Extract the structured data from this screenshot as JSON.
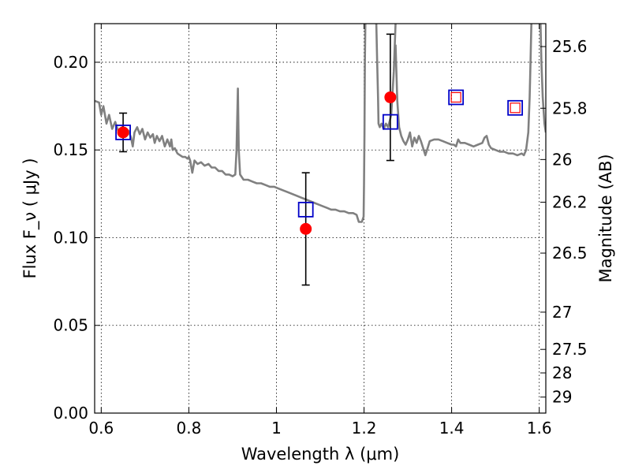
{
  "chart_data": {
    "type": "scatter",
    "xlabel": "Wavelength  λ (μm)",
    "ylabel": "Flux  F_ν ( μJy )",
    "ylabel_right": "Magnitude (AB)",
    "xlim": [
      0.585,
      1.615
    ],
    "ylim": [
      0.0,
      0.222
    ],
    "grid": true,
    "xticks": [
      {
        "value": 0.6,
        "label": "0.6"
      },
      {
        "value": 0.8,
        "label": "0.8"
      },
      {
        "value": 1.0,
        "label": "1"
      },
      {
        "value": 1.2,
        "label": "1.2"
      },
      {
        "value": 1.4,
        "label": "1.4"
      },
      {
        "value": 1.6,
        "label": "1.6"
      }
    ],
    "yticks": [
      {
        "value": 0.0,
        "label": "0.00"
      },
      {
        "value": 0.05,
        "label": "0.05"
      },
      {
        "value": 0.1,
        "label": "0.10"
      },
      {
        "value": 0.15,
        "label": "0.15"
      },
      {
        "value": 0.2,
        "label": "0.20"
      }
    ],
    "mag_ticks": [
      {
        "value": 25.6,
        "label": "25.6"
      },
      {
        "value": 25.8,
        "label": "25.8"
      },
      {
        "value": 26.0,
        "label": "26"
      },
      {
        "value": 26.2,
        "label": "26.2"
      },
      {
        "value": 26.5,
        "label": "26.5"
      },
      {
        "value": 27.0,
        "label": "27"
      },
      {
        "value": 27.5,
        "label": "27.5"
      },
      {
        "value": 28.0,
        "label": "28"
      },
      {
        "value": 29.0,
        "label": "29"
      }
    ],
    "series": [
      {
        "kind": "line",
        "color": "#808080",
        "points": [
          [
            0.585,
            0.178
          ],
          [
            0.595,
            0.177
          ],
          [
            0.6,
            0.17
          ],
          [
            0.605,
            0.175
          ],
          [
            0.612,
            0.165
          ],
          [
            0.618,
            0.17
          ],
          [
            0.625,
            0.162
          ],
          [
            0.632,
            0.166
          ],
          [
            0.64,
            0.16
          ],
          [
            0.648,
            0.163
          ],
          [
            0.655,
            0.158
          ],
          [
            0.662,
            0.161
          ],
          [
            0.668,
            0.157
          ],
          [
            0.672,
            0.152
          ],
          [
            0.676,
            0.16
          ],
          [
            0.682,
            0.163
          ],
          [
            0.688,
            0.159
          ],
          [
            0.694,
            0.162
          ],
          [
            0.7,
            0.156
          ],
          [
            0.706,
            0.16
          ],
          [
            0.712,
            0.157
          ],
          [
            0.718,
            0.159
          ],
          [
            0.722,
            0.154
          ],
          [
            0.727,
            0.158
          ],
          [
            0.733,
            0.155
          ],
          [
            0.739,
            0.158
          ],
          [
            0.745,
            0.152
          ],
          [
            0.751,
            0.156
          ],
          [
            0.757,
            0.152
          ],
          [
            0.76,
            0.156
          ],
          [
            0.763,
            0.15
          ],
          [
            0.768,
            0.151
          ],
          [
            0.774,
            0.148
          ],
          [
            0.78,
            0.147
          ],
          [
            0.786,
            0.146
          ],
          [
            0.792,
            0.146
          ],
          [
            0.797,
            0.145
          ],
          [
            0.8,
            0.146
          ],
          [
            0.803,
            0.144
          ],
          [
            0.808,
            0.137
          ],
          [
            0.813,
            0.144
          ],
          [
            0.82,
            0.142
          ],
          [
            0.828,
            0.143
          ],
          [
            0.836,
            0.141
          ],
          [
            0.845,
            0.142
          ],
          [
            0.852,
            0.14
          ],
          [
            0.86,
            0.14
          ],
          [
            0.868,
            0.138
          ],
          [
            0.876,
            0.138
          ],
          [
            0.884,
            0.136
          ],
          [
            0.892,
            0.136
          ],
          [
            0.9,
            0.135
          ],
          [
            0.906,
            0.136
          ],
          [
            0.909,
            0.15
          ],
          [
            0.912,
            0.185
          ],
          [
            0.914,
            0.15
          ],
          [
            0.917,
            0.136
          ],
          [
            0.925,
            0.133
          ],
          [
            0.935,
            0.133
          ],
          [
            0.945,
            0.132
          ],
          [
            0.955,
            0.131
          ],
          [
            0.965,
            0.131
          ],
          [
            0.975,
            0.13
          ],
          [
            0.985,
            0.129
          ],
          [
            0.995,
            0.129
          ],
          [
            1.005,
            0.128
          ],
          [
            1.015,
            0.127
          ],
          [
            1.025,
            0.126
          ],
          [
            1.035,
            0.125
          ],
          [
            1.045,
            0.124
          ],
          [
            1.055,
            0.123
          ],
          [
            1.065,
            0.122
          ],
          [
            1.075,
            0.121
          ],
          [
            1.085,
            0.12
          ],
          [
            1.095,
            0.119
          ],
          [
            1.105,
            0.118
          ],
          [
            1.115,
            0.117
          ],
          [
            1.125,
            0.116
          ],
          [
            1.135,
            0.116
          ],
          [
            1.145,
            0.115
          ],
          [
            1.155,
            0.115
          ],
          [
            1.165,
            0.114
          ],
          [
            1.175,
            0.114
          ],
          [
            1.183,
            0.113
          ],
          [
            1.188,
            0.109
          ],
          [
            1.195,
            0.109
          ],
          [
            1.199,
            0.112
          ],
          [
            1.2,
            0.13
          ],
          [
            1.201,
            0.16
          ],
          [
            1.202,
            0.2
          ],
          [
            1.203,
            0.222
          ]
        ]
      },
      {
        "kind": "line",
        "color": "#808080",
        "points": [
          [
            1.228,
            0.222
          ],
          [
            1.23,
            0.2
          ],
          [
            1.232,
            0.18
          ],
          [
            1.233,
            0.165
          ],
          [
            1.236,
            0.163
          ],
          [
            1.24,
            0.165
          ],
          [
            1.245,
            0.162
          ],
          [
            1.25,
            0.165
          ],
          [
            1.255,
            0.163
          ],
          [
            1.262,
            0.17
          ],
          [
            1.268,
            0.195
          ],
          [
            1.272,
            0.222
          ]
        ]
      },
      {
        "kind": "line",
        "color": "#808080",
        "points": [
          [
            1.272,
            0.21
          ],
          [
            1.276,
            0.178
          ],
          [
            1.28,
            0.163
          ],
          [
            1.285,
            0.158
          ],
          [
            1.29,
            0.155
          ],
          [
            1.295,
            0.153
          ],
          [
            1.3,
            0.156
          ],
          [
            1.305,
            0.16
          ],
          [
            1.31,
            0.152
          ],
          [
            1.315,
            0.157
          ],
          [
            1.32,
            0.154
          ],
          [
            1.325,
            0.158
          ],
          [
            1.33,
            0.155
          ],
          [
            1.335,
            0.151
          ],
          [
            1.34,
            0.147
          ],
          [
            1.345,
            0.151
          ],
          [
            1.35,
            0.155
          ],
          [
            1.36,
            0.156
          ],
          [
            1.37,
            0.156
          ],
          [
            1.38,
            0.155
          ],
          [
            1.39,
            0.154
          ],
          [
            1.4,
            0.153
          ],
          [
            1.405,
            0.153
          ],
          [
            1.41,
            0.152
          ],
          [
            1.415,
            0.156
          ],
          [
            1.42,
            0.154
          ],
          [
            1.43,
            0.154
          ],
          [
            1.44,
            0.153
          ],
          [
            1.45,
            0.152
          ],
          [
            1.46,
            0.153
          ],
          [
            1.47,
            0.154
          ],
          [
            1.475,
            0.157
          ],
          [
            1.48,
            0.158
          ],
          [
            1.485,
            0.153
          ],
          [
            1.49,
            0.151
          ],
          [
            1.5,
            0.15
          ],
          [
            1.51,
            0.149
          ],
          [
            1.52,
            0.149
          ],
          [
            1.53,
            0.148
          ],
          [
            1.54,
            0.148
          ],
          [
            1.55,
            0.147
          ],
          [
            1.56,
            0.148
          ],
          [
            1.565,
            0.147
          ],
          [
            1.57,
            0.15
          ],
          [
            1.575,
            0.16
          ],
          [
            1.578,
            0.18
          ],
          [
            1.58,
            0.2
          ],
          [
            1.582,
            0.222
          ]
        ]
      },
      {
        "kind": "line",
        "color": "#808080",
        "points": [
          [
            1.603,
            0.222
          ],
          [
            1.605,
            0.2
          ],
          [
            1.608,
            0.18
          ],
          [
            1.612,
            0.165
          ],
          [
            1.615,
            0.16
          ]
        ]
      },
      {
        "kind": "squares",
        "color": "#0000c8",
        "points": [
          [
            0.65,
            0.16
          ],
          [
            1.067,
            0.116
          ],
          [
            1.26,
            0.166
          ],
          [
            1.41,
            0.18
          ],
          [
            1.545,
            0.174
          ]
        ]
      },
      {
        "kind": "circles",
        "color": "#ff0000",
        "points": [
          [
            0.65,
            0.16
          ],
          [
            1.067,
            0.105
          ],
          [
            1.26,
            0.18
          ]
        ],
        "errors": [
          0.011,
          0.032,
          0.036
        ]
      },
      {
        "kind": "small_squares",
        "color": "#ff0000",
        "points": [
          [
            1.41,
            0.18
          ],
          [
            1.545,
            0.174
          ]
        ]
      }
    ]
  }
}
